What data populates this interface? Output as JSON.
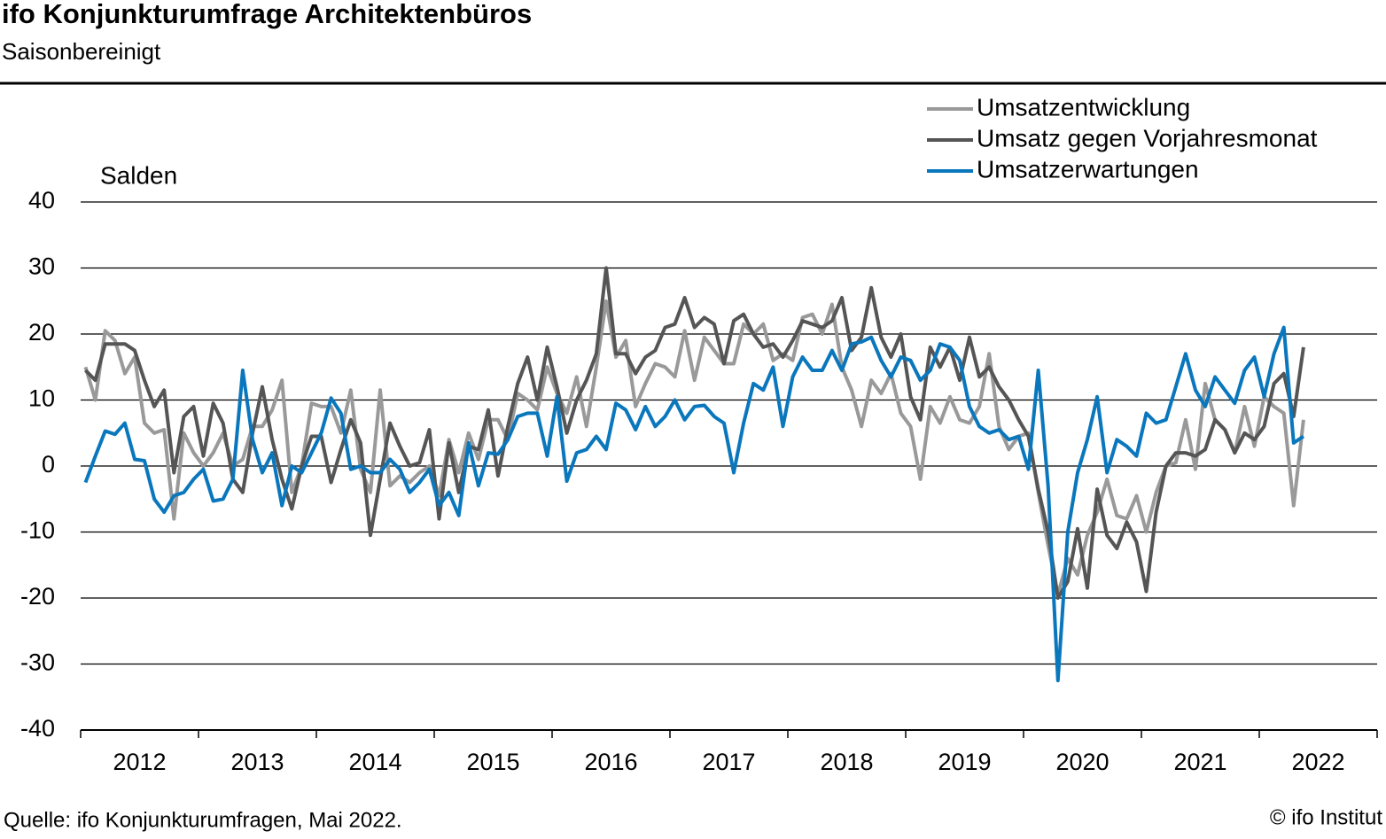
{
  "chart_data": {
    "type": "line",
    "title": "ifo Konjunkturumfrage Architektenbüros",
    "subtitle": "Saisonbereinigt",
    "y_label": "Salden",
    "source": "Quelle: ifo Konjunkturumfragen, Mai 2022.",
    "credit": "© ifo Institut",
    "legend": "top-right",
    "grid": true,
    "ylim": [
      -40,
      40
    ],
    "yticks": [
      -40,
      -30,
      -20,
      -10,
      0,
      10,
      20,
      30,
      40
    ],
    "categories": [
      "2012",
      null,
      null,
      null,
      null,
      null,
      null,
      null,
      null,
      null,
      null,
      null,
      "2013",
      null,
      null,
      null,
      null,
      null,
      null,
      null,
      null,
      null,
      null,
      null,
      "2014",
      null,
      null,
      null,
      null,
      null,
      null,
      null,
      null,
      null,
      null,
      null,
      "2015",
      null,
      null,
      null,
      null,
      null,
      null,
      null,
      null,
      null,
      null,
      null,
      "2016",
      null,
      null,
      null,
      null,
      null,
      null,
      null,
      null,
      null,
      null,
      null,
      "2017",
      null,
      null,
      null,
      null,
      null,
      null,
      null,
      null,
      null,
      null,
      null,
      "2018",
      null,
      null,
      null,
      null,
      null,
      null,
      null,
      null,
      null,
      null,
      null,
      "2019",
      null,
      null,
      null,
      null,
      null,
      null,
      null,
      null,
      null,
      null,
      null,
      "2020",
      null,
      null,
      null,
      null,
      null,
      null,
      null,
      null,
      null,
      null,
      null,
      "2021",
      null,
      null,
      null,
      null,
      null,
      null,
      null,
      null,
      null,
      null,
      null,
      "2022",
      null,
      null,
      null,
      null
    ],
    "series": [
      {
        "name": "Umsatzentwicklung",
        "color": "#999999",
        "values": [
          15,
          10,
          20.5,
          19,
          14,
          16.5,
          6.5,
          5,
          5.5,
          -8,
          5,
          2,
          0,
          2,
          5,
          0,
          1,
          6,
          6,
          8.5,
          13,
          -4,
          0,
          9.5,
          9,
          9,
          5,
          11.5,
          -0.5,
          -4,
          11.5,
          -3,
          -1.5,
          -2.5,
          -1,
          0,
          -4.5,
          4,
          -1,
          5,
          1,
          7,
          7,
          4,
          11,
          10,
          8.5,
          15,
          11,
          8,
          13.5,
          6,
          15,
          25,
          16.5,
          19,
          9,
          12.5,
          15.5,
          15,
          13.5,
          20.5,
          13,
          19.5,
          17.5,
          15.5,
          15.5,
          21.5,
          20,
          21.5,
          16,
          17,
          16,
          22.5,
          23,
          20,
          24.5,
          15,
          11.5,
          6,
          13,
          11,
          14,
          8,
          6,
          -2,
          9,
          6.5,
          10.5,
          7,
          6.5,
          9,
          17,
          6,
          2.5,
          4.5,
          5,
          -4,
          -12,
          -19.5,
          -14,
          -16.5,
          -10.5,
          -7,
          -2,
          -7.5,
          -8,
          -4.5,
          -10,
          -4,
          0,
          0.5,
          7,
          -0.5,
          12.5,
          7,
          5.5,
          2,
          9,
          3,
          10.5,
          9,
          8,
          -6,
          7
        ]
      },
      {
        "name": "Umsatz gegen Vorjahresmonat",
        "color": "#555555",
        "values": [
          14.5,
          13,
          18.5,
          18.5,
          18.5,
          17.5,
          13,
          9,
          11.5,
          -1,
          7.5,
          9,
          1.5,
          9.5,
          6.5,
          -2,
          -4,
          5,
          12,
          4,
          -2,
          -6.5,
          0,
          4.5,
          4.5,
          -2.5,
          2.5,
          7,
          3.5,
          -10.5,
          -2,
          6.5,
          3,
          0,
          0.5,
          5.5,
          -8,
          3.5,
          -4,
          3,
          2.5,
          8.5,
          -1.5,
          6,
          12.5,
          16.5,
          10,
          18,
          12,
          5,
          10,
          13,
          17,
          30,
          17,
          17,
          14,
          16.5,
          17.5,
          21,
          21.5,
          25.5,
          21,
          22.5,
          21.5,
          15.5,
          22,
          23,
          20,
          18,
          18.5,
          16.5,
          19,
          22,
          21.5,
          21,
          22,
          25.5,
          17.5,
          19.5,
          27,
          19.5,
          16.5,
          20,
          10.5,
          7,
          18,
          15,
          18,
          13,
          19.5,
          13.5,
          15,
          12,
          10,
          7,
          4.5,
          -3.5,
          -10,
          -20,
          -17.5,
          -9.5,
          -18.5,
          -3.5,
          -10.5,
          -12.5,
          -8.5,
          -11.5,
          -19,
          -7,
          0,
          2,
          2,
          1.5,
          2.5,
          7,
          5.5,
          2,
          5,
          4,
          6,
          12.5,
          14,
          7.5,
          18
        ]
      },
      {
        "name": "Umsatzerwartungen",
        "color": "#0a77bd",
        "values": [
          -2.5,
          1.5,
          5.3,
          4.8,
          6.5,
          1,
          0.8,
          -5,
          -7,
          -4.5,
          -4,
          -2,
          -0.5,
          -5.3,
          -5,
          -2,
          14.5,
          4,
          -1,
          2,
          -6,
          0,
          -1,
          2,
          5,
          10.3,
          8,
          -0.5,
          0,
          -1,
          -1,
          1,
          -0.5,
          -4,
          -2.5,
          -0.5,
          -6,
          -4,
          -7.5,
          3.5,
          -3,
          2,
          1.8,
          4,
          7.5,
          8,
          8,
          1.5,
          10.5,
          -2.3,
          2,
          2.5,
          4.5,
          2.5,
          9.5,
          8.5,
          5.5,
          9,
          6,
          7.5,
          10,
          7,
          9,
          9.2,
          7.5,
          6.5,
          -1,
          6.5,
          12.5,
          11.5,
          15,
          6,
          13.5,
          16.5,
          14.5,
          14.5,
          17.5,
          14.5,
          18.5,
          18.8,
          19.5,
          16,
          13.5,
          16.5,
          16,
          13,
          14.5,
          18.5,
          18,
          16,
          9,
          6,
          5,
          5.5,
          4,
          4.5,
          -0.5,
          14.5,
          -3,
          -32.5,
          -10,
          -1,
          4,
          10.5,
          -1,
          4,
          3,
          1.5,
          8,
          6.5,
          7,
          12,
          17,
          11.5,
          9,
          13.5,
          11.5,
          9.5,
          14.5,
          16.5,
          10.5,
          17,
          21,
          3.5,
          4.5
        ]
      }
    ]
  }
}
